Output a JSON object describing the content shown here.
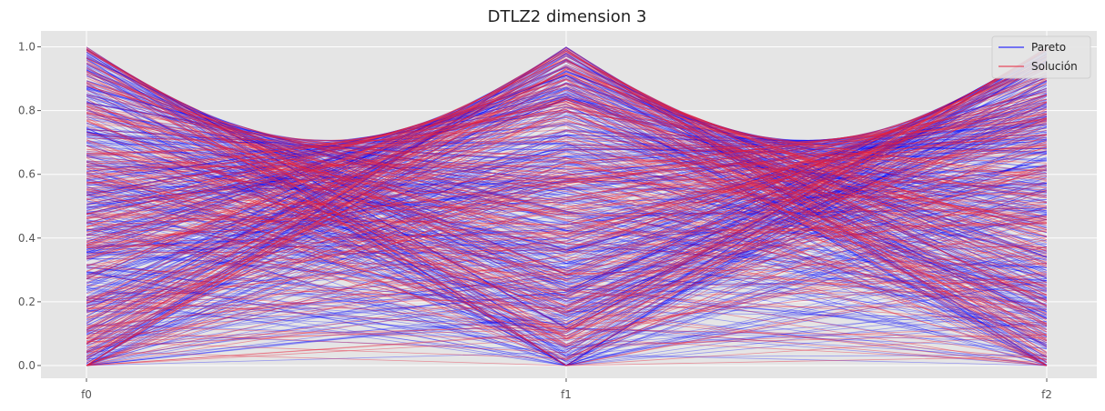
{
  "chart_data": {
    "type": "line",
    "title": "DTLZ2 dimension 3",
    "xlabel": "",
    "ylabel": "",
    "categories": [
      "f0",
      "f1",
      "f2"
    ],
    "ylim": [
      -0.04,
      1.05
    ],
    "yticks": [
      "0.0",
      "0.2",
      "0.4",
      "0.6",
      "0.8",
      "1.0"
    ],
    "ytick_values": [
      0.0,
      0.2,
      0.4,
      0.6,
      0.8,
      1.0
    ],
    "grid": true,
    "legend_position": "top-right",
    "background": "#e5e5e5",
    "series": [
      {
        "name": "Pareto",
        "color": "#0000ff",
        "description": "sampled points on the unit-sphere Pareto front (f0^2+f1^2+f2^2=1), one polyline per point across f0, f1, f2"
      },
      {
        "name": "Solución",
        "color": "#e8223a",
        "description": "sampled solutions on the same front, one polyline per point across f0, f1, f2"
      }
    ]
  }
}
